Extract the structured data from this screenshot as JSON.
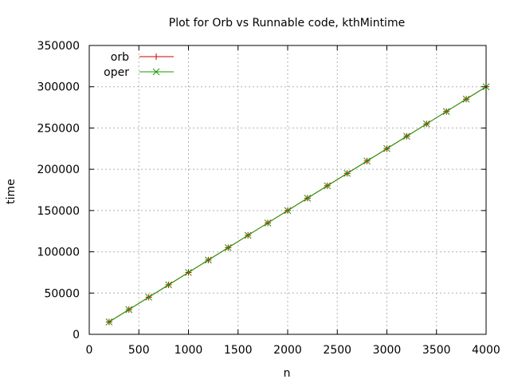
{
  "chart_data": {
    "type": "line",
    "title": "Plot for Orb vs Runnable code, kthMintime",
    "xlabel": "n",
    "ylabel": "time",
    "xlim": [
      0,
      4000
    ],
    "ylim": [
      0,
      350000
    ],
    "xticks": [
      0,
      500,
      1000,
      1500,
      2000,
      2500,
      3000,
      3500,
      4000
    ],
    "yticks": [
      0,
      50000,
      100000,
      150000,
      200000,
      250000,
      300000,
      350000
    ],
    "xtick_labels": [
      "0",
      "500",
      "1000",
      "1500",
      "2000",
      "2500",
      "3000",
      "3500",
      "4000"
    ],
    "ytick_labels": [
      "0",
      "50000",
      "100000",
      "150000",
      "200000",
      "250000",
      "300000",
      "350000"
    ],
    "grid": true,
    "legend_position": "top-left",
    "x": [
      200,
      400,
      600,
      800,
      1000,
      1200,
      1400,
      1600,
      1800,
      2000,
      2200,
      2400,
      2600,
      2800,
      3000,
      3200,
      3400,
      3600,
      3800,
      4000
    ],
    "series": [
      {
        "name": "orb",
        "color": "#cc0000",
        "marker": "plus",
        "values": [
          15000,
          30000,
          45000,
          60000,
          75000,
          90000,
          105000,
          120000,
          135000,
          150000,
          165000,
          180000,
          195000,
          210000,
          225000,
          240000,
          255000,
          270000,
          285000,
          300000
        ]
      },
      {
        "name": "oper",
        "color": "#1a9a00",
        "marker": "cross",
        "values": [
          15000,
          30000,
          45000,
          60000,
          75000,
          90000,
          105000,
          120000,
          135000,
          150000,
          165000,
          180000,
          195000,
          210000,
          225000,
          240000,
          255000,
          270000,
          285000,
          300000
        ]
      }
    ]
  }
}
